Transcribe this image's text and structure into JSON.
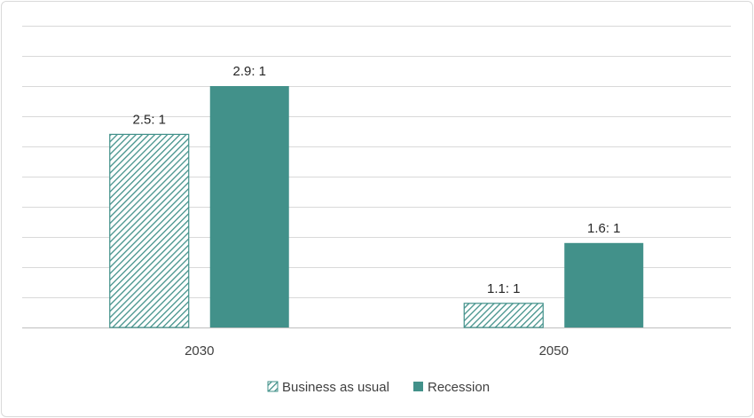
{
  "chart_data": {
    "type": "bar",
    "categories": [
      "2030",
      "2050"
    ],
    "series": [
      {
        "name": "Business as usual",
        "values": [
          2.5,
          1.1
        ],
        "labels": [
          "2.5: 1",
          "1.1: 1"
        ],
        "style": "hatched"
      },
      {
        "name": "Recession",
        "values": [
          2.9,
          1.6
        ],
        "labels": [
          "2.9: 1",
          "1.6: 1"
        ],
        "style": "solid"
      }
    ],
    "title": "",
    "xlabel": "",
    "ylabel": "",
    "ylim": [
      0.9,
      3.3
    ],
    "grid": true,
    "legend_position": "bottom",
    "colors": {
      "accent": "#42918a",
      "grid": "#d9d9d9",
      "axis": "#bfbfbf"
    }
  }
}
